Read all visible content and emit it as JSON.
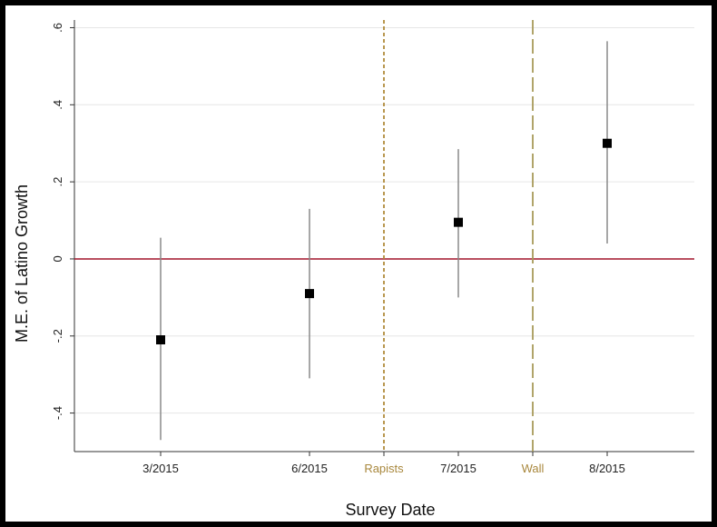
{
  "chart_data": {
    "type": "scatter",
    "subtype": "point-estimates-with-confidence-intervals",
    "xlabel": "Survey Date",
    "ylabel": "M.E. of Latino Growth",
    "categories": [
      "3/2015",
      "6/2015",
      "Rapists",
      "7/2015",
      "Wall",
      "8/2015"
    ],
    "points": [
      {
        "label": "3/2015",
        "estimate": -0.21,
        "lower": -0.47,
        "upper": 0.055
      },
      {
        "label": "6/2015",
        "estimate": -0.09,
        "lower": -0.31,
        "upper": 0.13
      },
      {
        "label": "7/2015",
        "estimate": 0.095,
        "lower": -0.1,
        "upper": 0.285
      },
      {
        "label": "8/2015",
        "estimate": 0.3,
        "lower": 0.04,
        "upper": 0.565
      }
    ],
    "y_ticks": [
      {
        "value": -0.4,
        "label": "-.4"
      },
      {
        "value": -0.2,
        "label": "-.2"
      },
      {
        "value": 0,
        "label": "0"
      },
      {
        "value": 0.2,
        "label": ".2"
      },
      {
        "value": 0.4,
        "label": ".4"
      },
      {
        "value": 0.6,
        "label": ".6"
      }
    ],
    "ylim": [
      -0.5,
      0.62
    ],
    "reference_line": {
      "value": 0,
      "color": "#a3152b"
    },
    "event_lines": [
      {
        "label": "Rapists",
        "position": 2,
        "style": "short-dash",
        "color": "#b08a3a"
      },
      {
        "label": "Wall",
        "position": 4,
        "style": "long-dash",
        "color": "#a89a5a"
      }
    ],
    "grid": true,
    "marker_color": "#000000",
    "ci_color": "#8a8a8a",
    "annotation_color": "#a8873c"
  }
}
